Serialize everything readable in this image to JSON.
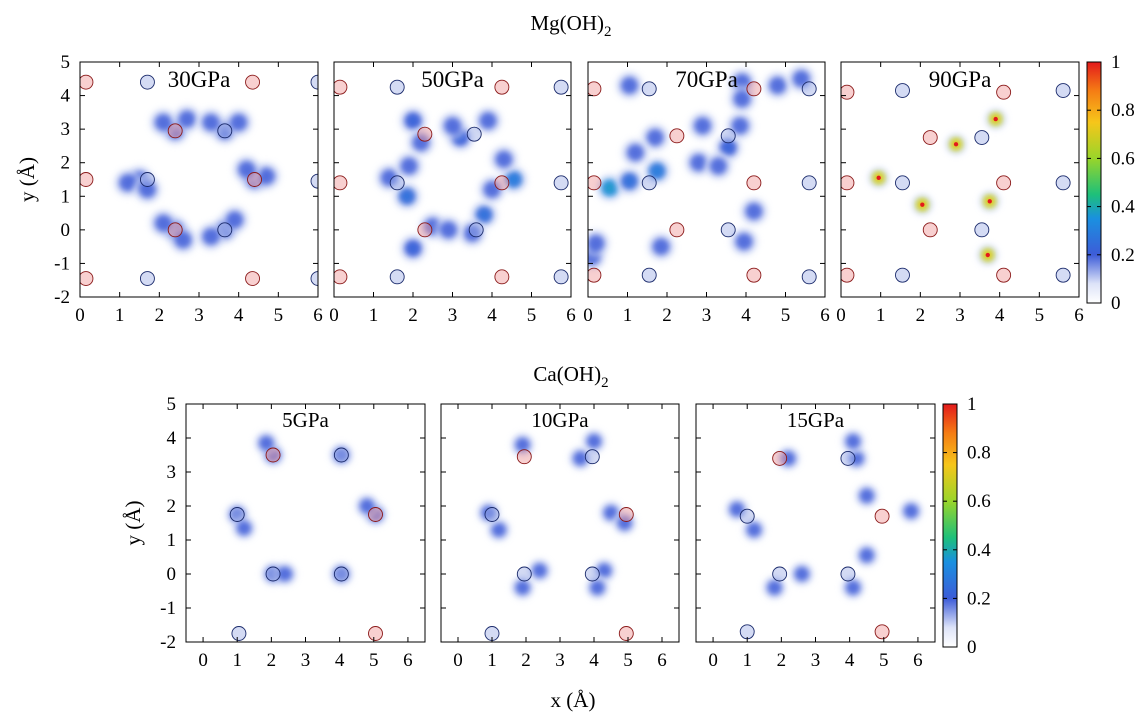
{
  "figure": {
    "row_titles": {
      "top": {
        "pre": "Mg(OH)",
        "sub": "2"
      },
      "bottom": {
        "pre": "Ca(OH)",
        "sub": "2"
      }
    },
    "xlabel": "x (Å)",
    "ylabel": "y (Å)"
  },
  "chart_data": [
    {
      "type": "heatmap",
      "row": "Mg(OH)2",
      "title": "30GPa",
      "xlim": [
        0,
        6
      ],
      "ylim": [
        -2,
        5
      ],
      "xticks": [
        "0",
        "1",
        "2",
        "3",
        "4",
        "5",
        "6"
      ],
      "yticks": [
        "-2",
        "-1",
        "0",
        "1",
        "2",
        "3",
        "4",
        "5"
      ],
      "show_yticks": true,
      "ylabel": "y (Å)",
      "blue_atoms": [
        [
          1.7,
          -1.45
        ],
        [
          1.7,
          1.5
        ],
        [
          3.65,
          0.0
        ],
        [
          3.65,
          2.95
        ],
        [
          1.7,
          4.4
        ],
        [
          6.0,
          4.4
        ],
        [
          6.0,
          1.45
        ],
        [
          6.0,
          -1.45
        ]
      ],
      "red_atoms": [
        [
          0.15,
          -1.45
        ],
        [
          0.15,
          1.5
        ],
        [
          2.4,
          0.0
        ],
        [
          2.4,
          2.95
        ],
        [
          4.4,
          1.5
        ],
        [
          0.15,
          4.4
        ],
        [
          4.35,
          4.4
        ],
        [
          4.35,
          -1.45
        ]
      ],
      "blobs": [
        [
          1.5,
          1.5,
          0.18
        ],
        [
          1.2,
          1.4,
          0.12
        ],
        [
          1.7,
          1.2,
          0.1
        ],
        [
          2.4,
          0.0,
          0.18
        ],
        [
          2.1,
          0.2,
          0.12
        ],
        [
          2.6,
          -0.3,
          0.1
        ],
        [
          2.4,
          2.95,
          0.18
        ],
        [
          2.1,
          3.2,
          0.12
        ],
        [
          2.7,
          3.3,
          0.1
        ],
        [
          3.65,
          0.0,
          0.18
        ],
        [
          3.3,
          -0.2,
          0.1
        ],
        [
          3.9,
          0.3,
          0.1
        ],
        [
          3.65,
          2.95,
          0.18
        ],
        [
          3.3,
          3.2,
          0.1
        ],
        [
          4.0,
          3.2,
          0.1
        ],
        [
          4.4,
          1.5,
          0.18
        ],
        [
          4.7,
          1.6,
          0.12
        ],
        [
          4.2,
          1.8,
          0.1
        ]
      ]
    },
    {
      "type": "heatmap",
      "row": "Mg(OH)2",
      "title": "50GPa",
      "xlim": [
        0,
        6
      ],
      "ylim": [
        -2,
        5
      ],
      "xticks": [
        "0",
        "1",
        "2",
        "3",
        "4",
        "5",
        "6"
      ],
      "yticks": [
        "-2",
        "-1",
        "0",
        "1",
        "2",
        "3",
        "4",
        "5"
      ],
      "show_yticks": false,
      "blue_atoms": [
        [
          1.6,
          -1.4
        ],
        [
          1.6,
          1.4
        ],
        [
          3.6,
          0.0
        ],
        [
          3.55,
          2.85
        ],
        [
          1.6,
          4.25
        ],
        [
          5.75,
          4.25
        ],
        [
          5.75,
          1.4
        ],
        [
          5.75,
          -1.4
        ]
      ],
      "red_atoms": [
        [
          0.15,
          -1.4
        ],
        [
          0.15,
          1.4
        ],
        [
          2.3,
          0.0
        ],
        [
          2.3,
          2.85
        ],
        [
          4.25,
          1.4
        ],
        [
          0.15,
          4.25
        ],
        [
          4.25,
          4.25
        ],
        [
          4.25,
          -1.4
        ]
      ],
      "blobs": [
        [
          1.85,
          1.0,
          0.35
        ],
        [
          2.0,
          -0.55,
          0.3
        ],
        [
          3.8,
          0.45,
          0.35
        ],
        [
          4.55,
          1.5,
          0.4
        ],
        [
          3.2,
          2.75,
          0.3
        ],
        [
          2.0,
          3.25,
          0.3
        ],
        [
          3.9,
          3.25,
          0.25
        ],
        [
          1.4,
          1.55,
          0.15
        ],
        [
          2.5,
          0.1,
          0.15
        ],
        [
          3.5,
          -0.1,
          0.15
        ],
        [
          2.2,
          2.6,
          0.15
        ],
        [
          4.0,
          1.2,
          0.15
        ],
        [
          1.9,
          1.9,
          0.12
        ],
        [
          2.9,
          0.0,
          0.12
        ],
        [
          3.0,
          3.1,
          0.12
        ],
        [
          4.3,
          2.1,
          0.12
        ]
      ]
    },
    {
      "type": "heatmap",
      "row": "Mg(OH)2",
      "title": "70GPa",
      "xlim": [
        0,
        6
      ],
      "ylim": [
        -2,
        5
      ],
      "xticks": [
        "0",
        "1",
        "2",
        "3",
        "4",
        "5",
        "6"
      ],
      "yticks": [
        "-2",
        "-1",
        "0",
        "1",
        "2",
        "3",
        "4",
        "5"
      ],
      "show_yticks": false,
      "blue_atoms": [
        [
          1.55,
          -1.35
        ],
        [
          1.55,
          1.4
        ],
        [
          3.55,
          0.0
        ],
        [
          3.55,
          2.8
        ],
        [
          1.55,
          4.2
        ],
        [
          5.6,
          4.2
        ],
        [
          5.6,
          1.4
        ],
        [
          5.6,
          -1.4
        ]
      ],
      "red_atoms": [
        [
          0.15,
          -1.35
        ],
        [
          0.15,
          1.4
        ],
        [
          2.25,
          0.0
        ],
        [
          2.25,
          2.8
        ],
        [
          4.2,
          1.4
        ],
        [
          0.15,
          4.2
        ],
        [
          4.2,
          4.2
        ],
        [
          4.2,
          -1.35
        ]
      ],
      "blobs": [
        [
          0.55,
          1.25,
          0.5
        ],
        [
          1.05,
          1.45,
          0.35
        ],
        [
          1.75,
          1.75,
          0.4
        ],
        [
          1.7,
          2.75,
          0.25
        ],
        [
          3.55,
          2.45,
          0.3
        ],
        [
          3.85,
          3.1,
          0.25
        ],
        [
          3.9,
          4.4,
          0.25
        ],
        [
          3.9,
          3.9,
          0.2
        ],
        [
          1.05,
          4.3,
          0.2
        ],
        [
          1.85,
          -0.5,
          0.2
        ],
        [
          3.95,
          -0.35,
          0.2
        ],
        [
          4.2,
          0.55,
          0.2
        ],
        [
          2.8,
          2.0,
          0.15
        ],
        [
          0.1,
          -0.8,
          0.15
        ],
        [
          0.2,
          -0.4,
          0.12
        ],
        [
          4.8,
          4.3,
          0.12
        ],
        [
          5.4,
          4.5,
          0.15
        ],
        [
          2.9,
          3.1,
          0.12
        ],
        [
          1.2,
          2.3,
          0.12
        ],
        [
          3.3,
          1.9,
          0.12
        ]
      ]
    },
    {
      "type": "heatmap",
      "row": "Mg(OH)2",
      "title": "90GPa",
      "xlim": [
        0,
        6
      ],
      "ylim": [
        -2,
        5
      ],
      "xticks": [
        "0",
        "1",
        "2",
        "3",
        "4",
        "5",
        "6"
      ],
      "yticks": [
        "-2",
        "-1",
        "0",
        "1",
        "2",
        "3",
        "4",
        "5"
      ],
      "show_yticks": false,
      "colorbar": {
        "ticks": [
          "0",
          "0.2",
          "0.4",
          "0.6",
          "0.8",
          "1"
        ]
      },
      "blue_atoms": [
        [
          1.55,
          -1.35
        ],
        [
          1.55,
          1.4
        ],
        [
          3.55,
          0.0
        ],
        [
          3.55,
          2.75
        ],
        [
          1.55,
          4.15
        ],
        [
          5.6,
          4.15
        ],
        [
          5.6,
          1.4
        ],
        [
          5.6,
          -1.35
        ]
      ],
      "red_atoms": [
        [
          0.15,
          -1.35
        ],
        [
          0.15,
          1.4
        ],
        [
          2.25,
          0.0
        ],
        [
          2.25,
          2.75
        ],
        [
          4.1,
          1.4
        ],
        [
          0.15,
          4.1
        ],
        [
          4.1,
          4.1
        ],
        [
          4.1,
          -1.35
        ]
      ],
      "blobs": [
        [
          0.95,
          1.55,
          1.0
        ],
        [
          2.05,
          0.75,
          1.0
        ],
        [
          2.9,
          2.55,
          1.0
        ],
        [
          3.9,
          3.3,
          1.0
        ],
        [
          3.75,
          0.85,
          1.0
        ],
        [
          3.7,
          -0.75,
          1.0
        ]
      ]
    },
    {
      "type": "heatmap",
      "row": "Ca(OH)2",
      "title": "5GPa",
      "xlim": [
        -0.5,
        6.5
      ],
      "ylim": [
        -2,
        5
      ],
      "xticks": [
        "0",
        "1",
        "2",
        "3",
        "4",
        "5",
        "6"
      ],
      "yticks": [
        "-2",
        "-1",
        "0",
        "1",
        "2",
        "3",
        "4",
        "5"
      ],
      "show_yticks": true,
      "ylabel": "y (Å)",
      "blue_atoms": [
        [
          1.0,
          1.75
        ],
        [
          2.05,
          0.0
        ],
        [
          4.05,
          0.0
        ],
        [
          4.05,
          3.5
        ],
        [
          1.05,
          -1.75
        ]
      ],
      "red_atoms": [
        [
          2.05,
          3.5
        ],
        [
          5.05,
          1.75
        ],
        [
          5.05,
          -1.75
        ]
      ],
      "blobs": [
        [
          1.0,
          1.75,
          0.25
        ],
        [
          1.2,
          1.35,
          0.12
        ],
        [
          2.05,
          3.5,
          0.25
        ],
        [
          1.85,
          3.85,
          0.1
        ],
        [
          2.05,
          0.0,
          0.25
        ],
        [
          2.4,
          0.0,
          0.1
        ],
        [
          4.05,
          3.5,
          0.25
        ],
        [
          4.05,
          0.0,
          0.25
        ],
        [
          5.05,
          1.75,
          0.25
        ],
        [
          4.8,
          2.0,
          0.1
        ]
      ]
    },
    {
      "type": "heatmap",
      "row": "Ca(OH)2",
      "title": "10GPa",
      "xlim": [
        -0.5,
        6.5
      ],
      "ylim": [
        -2,
        5
      ],
      "xticks": [
        "0",
        "1",
        "2",
        "3",
        "4",
        "5",
        "6"
      ],
      "yticks": [
        "-2",
        "-1",
        "0",
        "1",
        "2",
        "3",
        "4",
        "5"
      ],
      "show_yticks": false,
      "blue_atoms": [
        [
          1.0,
          1.75
        ],
        [
          1.95,
          0.0
        ],
        [
          3.95,
          0.0
        ],
        [
          3.95,
          3.45
        ],
        [
          1.0,
          -1.75
        ]
      ],
      "red_atoms": [
        [
          1.95,
          3.45
        ],
        [
          4.95,
          1.75
        ],
        [
          4.95,
          -1.75
        ]
      ],
      "blobs": [
        [
          1.2,
          1.3,
          0.2
        ],
        [
          0.9,
          1.8,
          0.2
        ],
        [
          1.9,
          -0.4,
          0.2
        ],
        [
          2.4,
          0.1,
          0.2
        ],
        [
          4.3,
          0.1,
          0.2
        ],
        [
          4.0,
          3.9,
          0.2
        ],
        [
          4.5,
          1.8,
          0.2
        ],
        [
          1.9,
          3.8,
          0.15
        ],
        [
          3.6,
          3.4,
          0.15
        ],
        [
          4.9,
          1.5,
          0.15
        ],
        [
          4.1,
          -0.4,
          0.12
        ]
      ]
    },
    {
      "type": "heatmap",
      "row": "Ca(OH)2",
      "title": "15GPa",
      "xlim": [
        -0.5,
        6.5
      ],
      "ylim": [
        -2,
        5
      ],
      "xticks": [
        "0",
        "1",
        "2",
        "3",
        "4",
        "5",
        "6"
      ],
      "yticks": [
        "-2",
        "-1",
        "0",
        "1",
        "2",
        "3",
        "4",
        "5"
      ],
      "show_yticks": false,
      "colorbar": {
        "ticks": [
          "0",
          "0.2",
          "0.4",
          "0.6",
          "0.8",
          "1"
        ]
      },
      "blue_atoms": [
        [
          1.0,
          1.7
        ],
        [
          1.95,
          0.0
        ],
        [
          3.95,
          0.0
        ],
        [
          3.95,
          3.4
        ],
        [
          1.0,
          -1.7
        ]
      ],
      "red_atoms": [
        [
          1.95,
          3.4
        ],
        [
          4.95,
          1.7
        ],
        [
          4.95,
          -1.7
        ]
      ],
      "blobs": [
        [
          1.2,
          1.3,
          0.2
        ],
        [
          2.6,
          0.0,
          0.2
        ],
        [
          4.5,
          0.55,
          0.2
        ],
        [
          4.5,
          2.3,
          0.2
        ],
        [
          2.2,
          3.4,
          0.2
        ],
        [
          4.2,
          3.4,
          0.2
        ],
        [
          5.8,
          1.85,
          0.2
        ],
        [
          1.8,
          -0.4,
          0.15
        ],
        [
          4.1,
          -0.4,
          0.12
        ],
        [
          4.1,
          3.9,
          0.15
        ],
        [
          0.7,
          1.9,
          0.12
        ]
      ]
    }
  ]
}
